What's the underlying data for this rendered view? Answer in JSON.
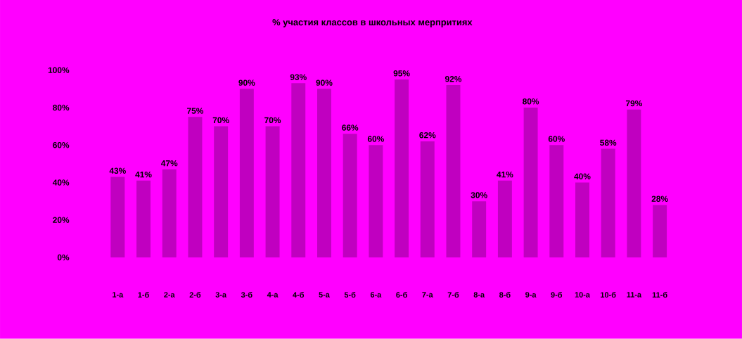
{
  "chart_data": {
    "type": "bar",
    "title": "% участия классов в школьных мерпритиях",
    "categories": [
      "1-а",
      "1-б",
      "2-а",
      "2-б",
      "3-а",
      "3-б",
      "4-а",
      "4-б",
      "5-а",
      "5-б",
      "6-а",
      "6-б",
      "7-а",
      "7-б",
      "8-а",
      "8-б",
      "9-а",
      "9-б",
      "10-а",
      "10-б",
      "11-а",
      "11-б"
    ],
    "values": [
      43,
      41,
      47,
      75,
      70,
      90,
      70,
      93,
      90,
      66,
      60,
      95,
      62,
      92,
      30,
      41,
      80,
      60,
      40,
      58,
      79,
      28
    ],
    "value_labels": [
      "43%",
      "41%",
      "47%",
      "75%",
      "70%",
      "90%",
      "70%",
      "93%",
      "90%",
      "66%",
      "60%",
      "95%",
      "62%",
      "92%",
      "30%",
      "41%",
      "80%",
      "60%",
      "40%",
      "58%",
      "79%",
      "28%"
    ],
    "color": "#c000c0",
    "ylim": [
      0,
      100
    ],
    "yticks": [
      {
        "value": 0,
        "label": "0%"
      },
      {
        "value": 20,
        "label": "20%"
      },
      {
        "value": 40,
        "label": "40%"
      },
      {
        "value": 60,
        "label": "60%"
      },
      {
        "value": 80,
        "label": "80%"
      },
      {
        "value": 100,
        "label": "100%"
      }
    ],
    "grid": false
  }
}
